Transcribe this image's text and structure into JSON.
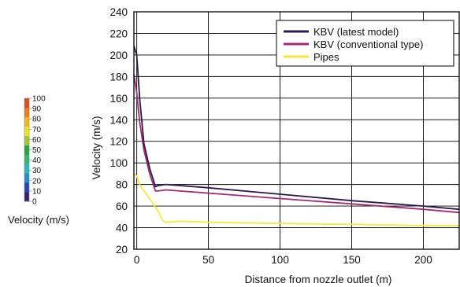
{
  "colorbar": {
    "ticks": [
      "100",
      "90",
      "80",
      "70",
      "60",
      "50",
      "40",
      "30",
      "20",
      "10",
      "0"
    ],
    "label": "Velocity (m/s)",
    "colors": [
      "#3b1f6e",
      "#2346b8",
      "#1c8fd6",
      "#2bb6c7",
      "#2dbb6a",
      "#22a83a",
      "#9ccc2a",
      "#f2e41a",
      "#f6b51a",
      "#f07a1a",
      "#e64a1a"
    ]
  },
  "chart_data": {
    "type": "line",
    "xlabel": "Distance from nozzle outlet (m)",
    "ylabel": "Velocity (m/s)",
    "xlim": [
      -2,
      225
    ],
    "ylim": [
      20,
      240
    ],
    "xticks": [
      "0",
      "50",
      "100",
      "150",
      "200"
    ],
    "yticks": [
      "20",
      "40",
      "60",
      "80",
      "100",
      "120",
      "140",
      "160",
      "180",
      "200",
      "220",
      "240"
    ],
    "grid": true,
    "legend_position": "top-right",
    "series": [
      {
        "name": "KBV (latest model)",
        "color": "#2a1a4a",
        "x": [
          -2,
          0,
          2,
          5,
          9,
          13,
          15,
          20,
          30,
          50,
          100,
          150,
          200,
          225
        ],
        "y": [
          208,
          200,
          160,
          118,
          95,
          78,
          79,
          80,
          79,
          77,
          71,
          65,
          60,
          57
        ]
      },
      {
        "name": "KBV (conventional type)",
        "color": "#a02c6e",
        "x": [
          -2,
          0,
          2,
          5,
          9,
          13,
          15,
          20,
          30,
          50,
          100,
          150,
          200,
          225
        ],
        "y": [
          182,
          165,
          138,
          112,
          90,
          74,
          74,
          75,
          74,
          72,
          67,
          62,
          57,
          54
        ]
      },
      {
        "name": "Pipes",
        "color": "#f2ea3c",
        "x": [
          -2,
          0,
          2,
          5,
          10,
          15,
          18,
          20,
          30,
          50,
          100,
          150,
          200,
          225
        ],
        "y": [
          90,
          88,
          80,
          74,
          65,
          55,
          47,
          45,
          46,
          45,
          44,
          43,
          42,
          42
        ]
      }
    ]
  }
}
